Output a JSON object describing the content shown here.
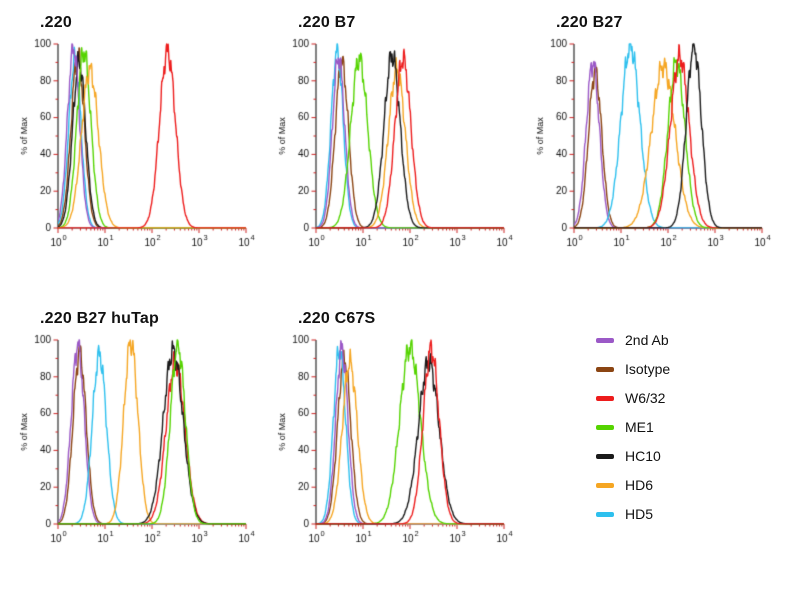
{
  "colors": {
    "axis": "#2a2a2a",
    "tick": "#cc2222",
    "text": "#111111",
    "background": "#ffffff"
  },
  "chart_data": {
    "type": "line",
    "subtype": "flow-cytometry-overlay-histograms",
    "x_axis": {
      "scale": "log10",
      "min_exponent": 0,
      "max_exponent": 4,
      "tick_exponents": [
        0,
        1,
        2,
        3,
        4
      ],
      "tick_label_base": "10"
    },
    "y_axis": {
      "label": "% of Max",
      "ticks": [
        0,
        20,
        40,
        60,
        80,
        100
      ],
      "max": 100
    },
    "legend": {
      "position": "bottom-right",
      "items": [
        {
          "label": "2nd Ab",
          "color": "#9b59c7"
        },
        {
          "label": "Isotype",
          "color": "#8b4513"
        },
        {
          "label": "W6/32",
          "color": "#ed1c1c"
        },
        {
          "label": "ME1",
          "color": "#55d400"
        },
        {
          "label": "HC10",
          "color": "#1a1a1a"
        },
        {
          "label": "HD6",
          "color": "#f5a623"
        },
        {
          "label": "HD5",
          "color": "#2ec0ee"
        }
      ]
    },
    "panels": [
      {
        "title": ".220",
        "series": [
          {
            "name": "HD5",
            "peak_log10": 0.36,
            "height_pct": 92,
            "sigma_log10": 0.13
          },
          {
            "name": "Isotype",
            "peak_log10": 0.42,
            "height_pct": 94,
            "sigma_log10": 0.14
          },
          {
            "name": "HC10",
            "peak_log10": 0.45,
            "height_pct": 90,
            "sigma_log10": 0.14
          },
          {
            "name": "2nd Ab",
            "peak_log10": 0.33,
            "height_pct": 98,
            "sigma_log10": 0.13
          },
          {
            "name": "ME1",
            "peak_log10": 0.55,
            "height_pct": 96,
            "sigma_log10": 0.15
          },
          {
            "name": "HD6",
            "peak_log10": 0.68,
            "height_pct": 86,
            "sigma_log10": 0.18
          },
          {
            "name": "W6/32",
            "peak_log10": 2.33,
            "height_pct": 96,
            "sigma_log10": 0.17
          }
        ]
      },
      {
        "title": ".220 B7",
        "series": [
          {
            "name": "Isotype",
            "peak_log10": 0.55,
            "height_pct": 90,
            "sigma_log10": 0.14
          },
          {
            "name": "HD5",
            "peak_log10": 0.45,
            "height_pct": 96,
            "sigma_log10": 0.13
          },
          {
            "name": "2nd Ab",
            "peak_log10": 0.48,
            "height_pct": 93,
            "sigma_log10": 0.13
          },
          {
            "name": "ME1",
            "peak_log10": 0.92,
            "height_pct": 92,
            "sigma_log10": 0.18
          },
          {
            "name": "HD6",
            "peak_log10": 1.72,
            "height_pct": 86,
            "sigma_log10": 0.18
          },
          {
            "name": "HC10",
            "peak_log10": 1.62,
            "height_pct": 94,
            "sigma_log10": 0.17
          },
          {
            "name": "W6/32",
            "peak_log10": 1.85,
            "height_pct": 92,
            "sigma_log10": 0.17
          }
        ]
      },
      {
        "title": ".220 B27",
        "series": [
          {
            "name": "Isotype",
            "peak_log10": 0.45,
            "height_pct": 85,
            "sigma_log10": 0.14
          },
          {
            "name": "2nd Ab",
            "peak_log10": 0.4,
            "height_pct": 90,
            "sigma_log10": 0.14
          },
          {
            "name": "HD5",
            "peak_log10": 1.2,
            "height_pct": 99,
            "sigma_log10": 0.2
          },
          {
            "name": "HD6",
            "peak_log10": 1.9,
            "height_pct": 88,
            "sigma_log10": 0.25
          },
          {
            "name": "ME1",
            "peak_log10": 2.18,
            "height_pct": 90,
            "sigma_log10": 0.18
          },
          {
            "name": "W6/32",
            "peak_log10": 2.25,
            "height_pct": 93,
            "sigma_log10": 0.2
          },
          {
            "name": "HC10",
            "peak_log10": 2.55,
            "height_pct": 99,
            "sigma_log10": 0.16
          }
        ]
      },
      {
        "title": ".220 B27 huTap",
        "series": [
          {
            "name": "Isotype",
            "peak_log10": 0.46,
            "height_pct": 93,
            "sigma_log10": 0.14
          },
          {
            "name": "2nd Ab",
            "peak_log10": 0.42,
            "height_pct": 97,
            "sigma_log10": 0.14
          },
          {
            "name": "HD5",
            "peak_log10": 0.88,
            "height_pct": 92,
            "sigma_log10": 0.15
          },
          {
            "name": "HD6",
            "peak_log10": 1.55,
            "height_pct": 99,
            "sigma_log10": 0.15
          },
          {
            "name": "W6/32",
            "peak_log10": 2.5,
            "height_pct": 88,
            "sigma_log10": 0.2
          },
          {
            "name": "HC10",
            "peak_log10": 2.45,
            "height_pct": 94,
            "sigma_log10": 0.21
          },
          {
            "name": "ME1",
            "peak_log10": 2.55,
            "height_pct": 97,
            "sigma_log10": 0.16
          }
        ]
      },
      {
        "title": ".220 C67S",
        "series": [
          {
            "name": "Isotype",
            "peak_log10": 0.6,
            "height_pct": 90,
            "sigma_log10": 0.14
          },
          {
            "name": "HD5",
            "peak_log10": 0.5,
            "height_pct": 95,
            "sigma_log10": 0.13
          },
          {
            "name": "2nd Ab",
            "peak_log10": 0.55,
            "height_pct": 95,
            "sigma_log10": 0.13
          },
          {
            "name": "HD6",
            "peak_log10": 0.72,
            "height_pct": 88,
            "sigma_log10": 0.16
          },
          {
            "name": "ME1",
            "peak_log10": 2.0,
            "height_pct": 96,
            "sigma_log10": 0.22
          },
          {
            "name": "HC10",
            "peak_log10": 2.4,
            "height_pct": 88,
            "sigma_log10": 0.22
          },
          {
            "name": "W6/32",
            "peak_log10": 2.45,
            "height_pct": 95,
            "sigma_log10": 0.17
          }
        ]
      }
    ]
  }
}
